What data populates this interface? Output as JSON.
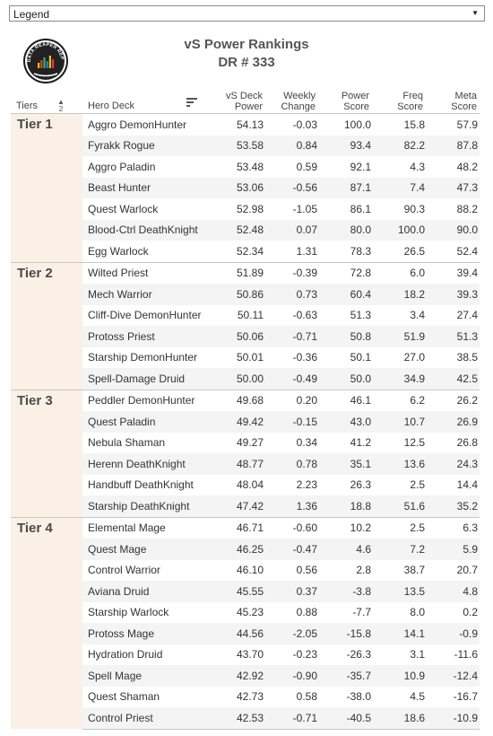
{
  "legend": {
    "label": "Legend"
  },
  "logo": {
    "text": "VS DATA REAPER REPORT"
  },
  "title": {
    "line1": "vS Power Rankings",
    "line2": "DR # 333"
  },
  "columns": {
    "tiers": "Tiers",
    "tiers_sort": "2",
    "hero": "Hero Deck",
    "power_l1": "vS Deck",
    "power_l2": "Power",
    "weekly_l1": "Weekly",
    "weekly_l2": "Change",
    "pscore_l1": "Power",
    "pscore_l2": "Score",
    "freq_l1": "Freq",
    "freq_l2": "Score",
    "meta_l1": "Meta",
    "meta_l2": "Score"
  },
  "tiers": [
    {
      "name": "Tier 1",
      "rows": [
        {
          "deck": "Aggro DemonHunter",
          "power": "54.13",
          "weekly": "-0.03",
          "power_score": "100.0",
          "freq": "15.8",
          "meta": "57.9"
        },
        {
          "deck": "Fyrakk Rogue",
          "power": "53.58",
          "weekly": "0.84",
          "power_score": "93.4",
          "freq": "82.2",
          "meta": "87.8"
        },
        {
          "deck": "Aggro Paladin",
          "power": "53.48",
          "weekly": "0.59",
          "power_score": "92.1",
          "freq": "4.3",
          "meta": "48.2"
        },
        {
          "deck": "Beast Hunter",
          "power": "53.06",
          "weekly": "-0.56",
          "power_score": "87.1",
          "freq": "7.4",
          "meta": "47.3"
        },
        {
          "deck": "Quest Warlock",
          "power": "52.98",
          "weekly": "-1.05",
          "power_score": "86.1",
          "freq": "90.3",
          "meta": "88.2"
        },
        {
          "deck": "Blood-Ctrl DeathKnight",
          "power": "52.48",
          "weekly": "0.07",
          "power_score": "80.0",
          "freq": "100.0",
          "meta": "90.0"
        },
        {
          "deck": "Egg Warlock",
          "power": "52.34",
          "weekly": "1.31",
          "power_score": "78.3",
          "freq": "26.5",
          "meta": "52.4"
        }
      ]
    },
    {
      "name": "Tier 2",
      "rows": [
        {
          "deck": "Wilted Priest",
          "power": "51.89",
          "weekly": "-0.39",
          "power_score": "72.8",
          "freq": "6.0",
          "meta": "39.4"
        },
        {
          "deck": "Mech Warrior",
          "power": "50.86",
          "weekly": "0.73",
          "power_score": "60.4",
          "freq": "18.2",
          "meta": "39.3"
        },
        {
          "deck": "Cliff-Dive DemonHunter",
          "power": "50.11",
          "weekly": "-0.63",
          "power_score": "51.3",
          "freq": "3.4",
          "meta": "27.4"
        },
        {
          "deck": "Protoss Priest",
          "power": "50.06",
          "weekly": "-0.71",
          "power_score": "50.8",
          "freq": "51.9",
          "meta": "51.3"
        },
        {
          "deck": "Starship DemonHunter",
          "power": "50.01",
          "weekly": "-0.36",
          "power_score": "50.1",
          "freq": "27.0",
          "meta": "38.5"
        },
        {
          "deck": "Spell-Damage Druid",
          "power": "50.00",
          "weekly": "-0.49",
          "power_score": "50.0",
          "freq": "34.9",
          "meta": "42.5"
        }
      ]
    },
    {
      "name": "Tier 3",
      "rows": [
        {
          "deck": "Peddler DemonHunter",
          "power": "49.68",
          "weekly": "0.20",
          "power_score": "46.1",
          "freq": "6.2",
          "meta": "26.2"
        },
        {
          "deck": "Quest Paladin",
          "power": "49.42",
          "weekly": "-0.15",
          "power_score": "43.0",
          "freq": "10.7",
          "meta": "26.9"
        },
        {
          "deck": "Nebula Shaman",
          "power": "49.27",
          "weekly": "0.34",
          "power_score": "41.2",
          "freq": "12.5",
          "meta": "26.8"
        },
        {
          "deck": "Herenn DeathKnight",
          "power": "48.77",
          "weekly": "0.78",
          "power_score": "35.1",
          "freq": "13.6",
          "meta": "24.3"
        },
        {
          "deck": "Handbuff DeathKnight",
          "power": "48.04",
          "weekly": "2.23",
          "power_score": "26.3",
          "freq": "2.5",
          "meta": "14.4"
        },
        {
          "deck": "Starship DeathKnight",
          "power": "47.42",
          "weekly": "1.36",
          "power_score": "18.8",
          "freq": "51.6",
          "meta": "35.2"
        }
      ]
    },
    {
      "name": "Tier 4",
      "rows": [
        {
          "deck": "Elemental Mage",
          "power": "46.71",
          "weekly": "-0.60",
          "power_score": "10.2",
          "freq": "2.5",
          "meta": "6.3"
        },
        {
          "deck": "Quest Mage",
          "power": "46.25",
          "weekly": "-0.47",
          "power_score": "4.6",
          "freq": "7.2",
          "meta": "5.9"
        },
        {
          "deck": "Control Warrior",
          "power": "46.10",
          "weekly": "0.56",
          "power_score": "2.8",
          "freq": "38.7",
          "meta": "20.7"
        },
        {
          "deck": "Aviana Druid",
          "power": "45.55",
          "weekly": "0.37",
          "power_score": "-3.8",
          "freq": "13.5",
          "meta": "4.8"
        },
        {
          "deck": "Starship Warlock",
          "power": "45.23",
          "weekly": "0.88",
          "power_score": "-7.7",
          "freq": "8.0",
          "meta": "0.2"
        },
        {
          "deck": "Protoss Mage",
          "power": "44.56",
          "weekly": "-2.05",
          "power_score": "-15.8",
          "freq": "14.1",
          "meta": "-0.9"
        },
        {
          "deck": "Hydration Druid",
          "power": "43.70",
          "weekly": "-0.23",
          "power_score": "-26.3",
          "freq": "3.1",
          "meta": "-11.6"
        },
        {
          "deck": "Spell Mage",
          "power": "42.92",
          "weekly": "-0.90",
          "power_score": "-35.7",
          "freq": "10.9",
          "meta": "-12.4"
        },
        {
          "deck": "Quest Shaman",
          "power": "42.73",
          "weekly": "0.58",
          "power_score": "-38.0",
          "freq": "4.5",
          "meta": "-16.7"
        },
        {
          "deck": "Control Priest",
          "power": "42.53",
          "weekly": "-0.71",
          "power_score": "-40.5",
          "freq": "18.6",
          "meta": "-10.9"
        }
      ]
    }
  ]
}
